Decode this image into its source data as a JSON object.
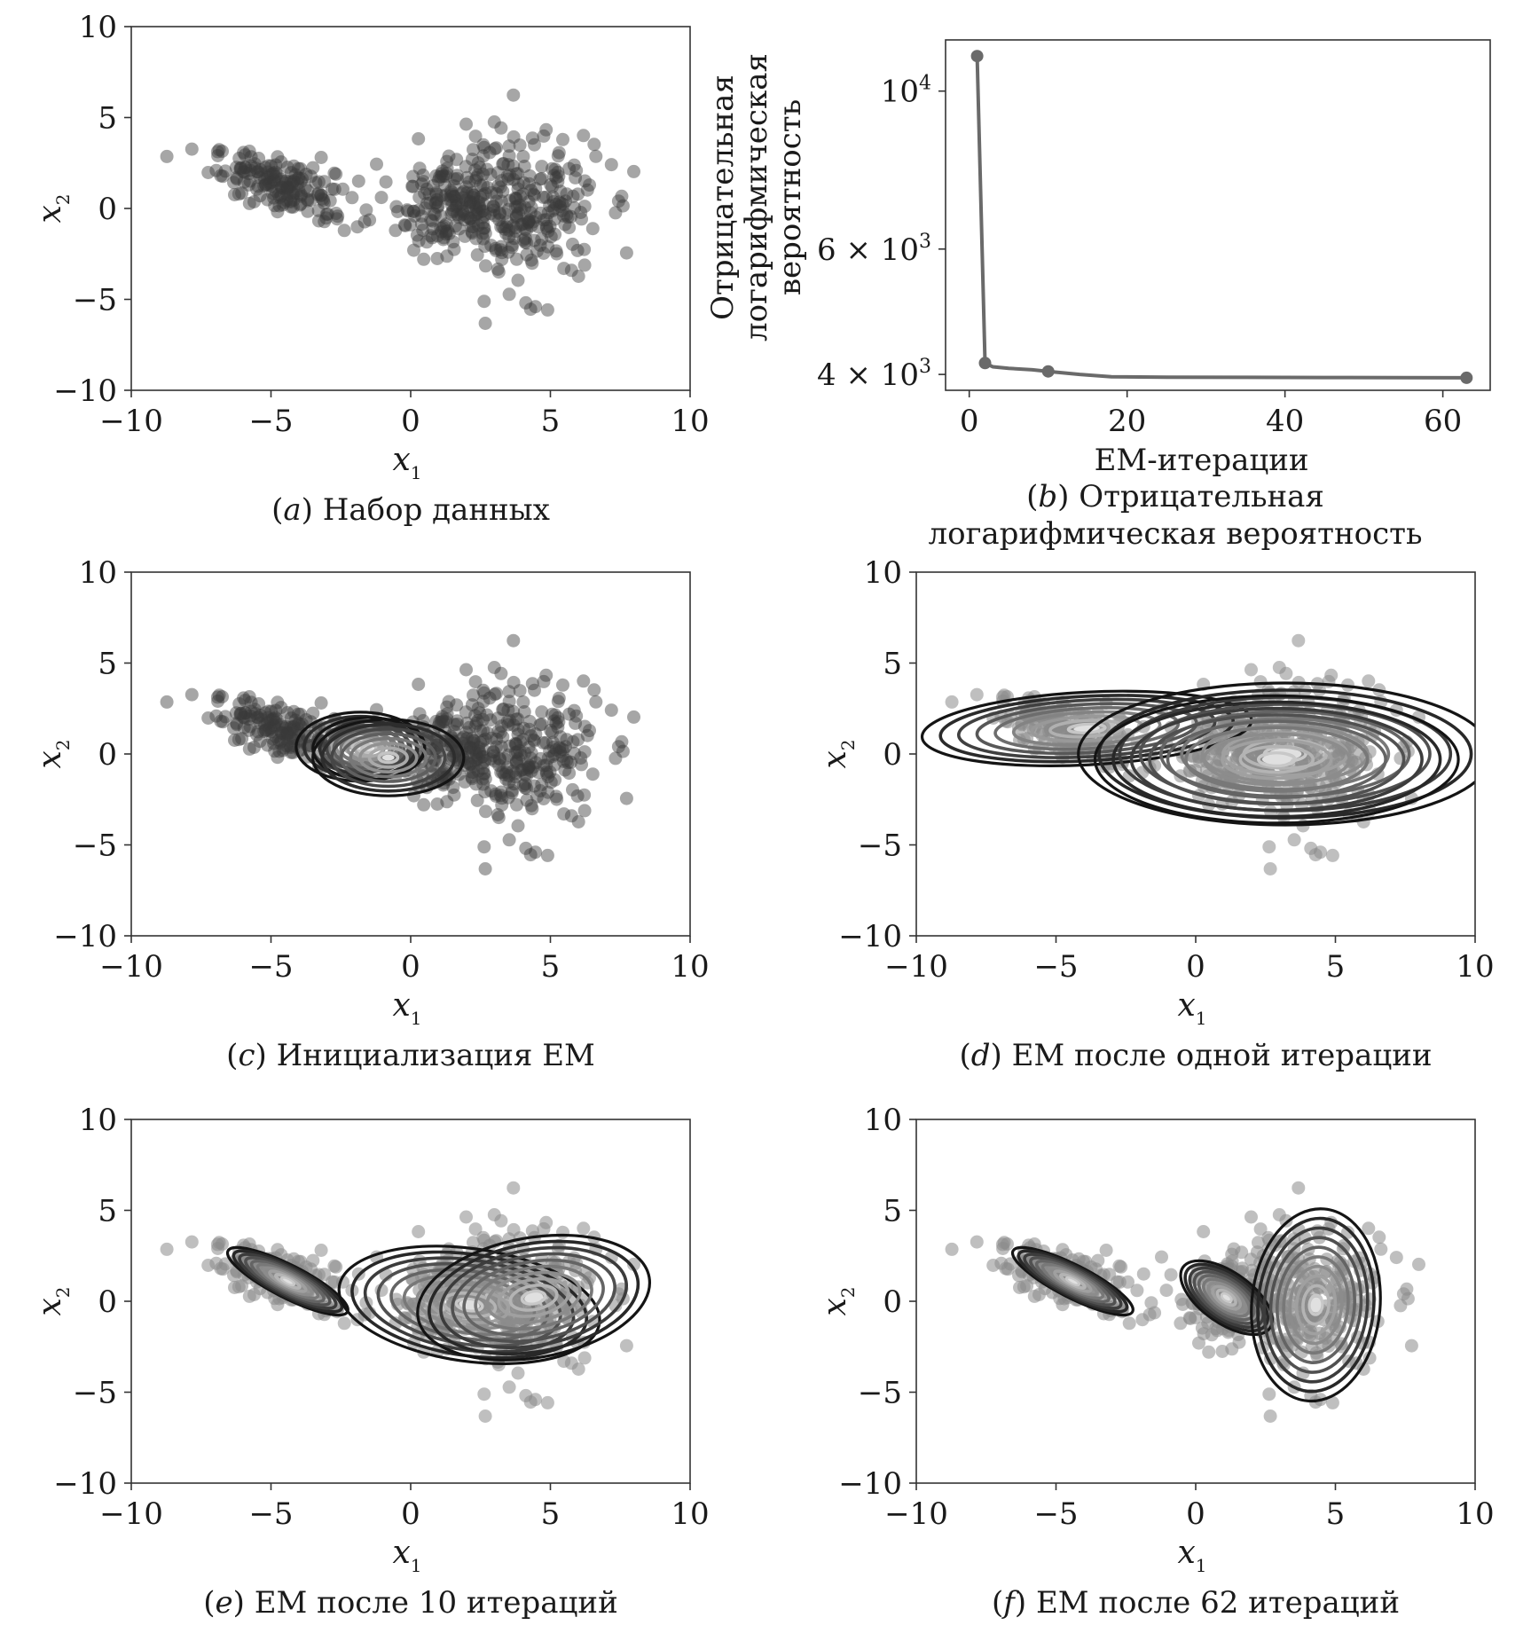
{
  "chart_data": [
    {
      "id": "a",
      "type": "scatter",
      "caption_letter": "a",
      "caption_lines": [
        "Набор  данных"
      ],
      "xlabel": "x",
      "xlabel_sub": "1",
      "ylabel": "x",
      "ylabel_sub": "2",
      "xlim": [
        -10,
        10
      ],
      "ylim": [
        -10,
        10
      ],
      "xticks": [
        -10,
        -5,
        0,
        5,
        10
      ],
      "yticks": [
        -10,
        -5,
        0,
        5,
        10
      ],
      "tick_labels_x": [
        "−10",
        "−5",
        "0",
        "5",
        "10"
      ],
      "tick_labels_y": [
        "−10",
        "−5",
        "0",
        "5",
        "10"
      ],
      "clusters": [
        {
          "center": [
            -4.5,
            1.2
          ],
          "spread": [
            1.3,
            0.9
          ],
          "rho": -0.6,
          "count": 170
        },
        {
          "center": [
            1.5,
            0.3
          ],
          "spread": [
            1.0,
            1.3
          ],
          "rho": 0.0,
          "count": 180
        },
        {
          "center": [
            4.2,
            0.0
          ],
          "spread": [
            1.3,
            2.1
          ],
          "rho": 0.0,
          "count": 220
        }
      ],
      "point_color": "#3a3a3a",
      "contours": []
    },
    {
      "id": "b",
      "type": "line",
      "caption_letter": "b",
      "caption_lines": [
        "Отрицательная",
        "логарифмическая вероятность"
      ],
      "xlabel": "EM-итерации",
      "ylabel_lines": [
        "Отрицательная",
        "логарифмическая",
        "вероятность"
      ],
      "xlim": [
        -3,
        66
      ],
      "ylim": [
        3800,
        11800
      ],
      "yscale": "log",
      "xticks": [
        0,
        20,
        40,
        60
      ],
      "tick_labels_x": [
        "0",
        "20",
        "40",
        "60"
      ],
      "yticks": [
        {
          "value": 10000,
          "base": "10",
          "exp": "4"
        },
        {
          "value": 6000,
          "base": "6 × 10",
          "exp": "3"
        },
        {
          "value": 4000,
          "base": "4 × 10",
          "exp": "3"
        }
      ],
      "series": [
        {
          "x": [
            1,
            2,
            3,
            5,
            8,
            10,
            14,
            18,
            25,
            35,
            45,
            55,
            63
          ],
          "y": [
            11200,
            4150,
            4100,
            4080,
            4060,
            4040,
            4000,
            3970,
            3965,
            3962,
            3960,
            3958,
            3957
          ],
          "markers_at": [
            1,
            2,
            10,
            63
          ],
          "color": "#6a6a6a"
        }
      ]
    },
    {
      "id": "c",
      "type": "scatter",
      "caption_letter": "c",
      "caption_lines": [
        "Инициализация EM"
      ],
      "xlabel": "x",
      "xlabel_sub": "1",
      "ylabel": "x",
      "ylabel_sub": "2",
      "xlim": [
        -10,
        10
      ],
      "ylim": [
        -10,
        10
      ],
      "xticks": [
        -10,
        -5,
        0,
        5,
        10
      ],
      "yticks": [
        -10,
        -5,
        0,
        5,
        10
      ],
      "tick_labels_x": [
        "−10",
        "−5",
        "0",
        "5",
        "10"
      ],
      "tick_labels_y": [
        "−10",
        "−5",
        "0",
        "5",
        "10"
      ],
      "point_color": "#3a3a3a",
      "contours": [
        {
          "center": [
            -1.8,
            0.4
          ],
          "rx": 2.3,
          "ry": 1.9,
          "angle": 0,
          "levels": 8
        },
        {
          "center": [
            -1.5,
            0.3
          ],
          "rx": 2.0,
          "ry": 1.7,
          "angle": 0,
          "levels": 8
        },
        {
          "center": [
            -0.8,
            -0.2
          ],
          "rx": 2.7,
          "ry": 2.1,
          "angle": 0,
          "levels": 8
        }
      ]
    },
    {
      "id": "d",
      "type": "scatter",
      "caption_letter": "d",
      "caption_lines": [
        "EM  после одной итерации"
      ],
      "xlabel": "x",
      "xlabel_sub": "1",
      "ylabel": "x",
      "ylabel_sub": "2",
      "xlim": [
        -10,
        10
      ],
      "ylim": [
        -10,
        10
      ],
      "xticks": [
        -10,
        -5,
        0,
        5,
        10
      ],
      "yticks": [
        -10,
        -5,
        0,
        5,
        10
      ],
      "tick_labels_x": [
        "−10",
        "−5",
        "0",
        "5",
        "10"
      ],
      "tick_labels_y": [
        "−10",
        "−5",
        "0",
        "5",
        "10"
      ],
      "point_color": "#8a8a8a",
      "contours": [
        {
          "center": [
            -3.9,
            1.4
          ],
          "rx": 5.9,
          "ry": 2.0,
          "angle": 3,
          "levels": 9
        },
        {
          "center": [
            3.2,
            0.0
          ],
          "rx": 7.4,
          "ry": 3.9,
          "angle": 0,
          "levels": 10
        },
        {
          "center": [
            2.9,
            -0.3
          ],
          "rx": 6.5,
          "ry": 3.5,
          "angle": 0,
          "levels": 10
        }
      ]
    },
    {
      "id": "e",
      "type": "scatter",
      "caption_letter": "e",
      "caption_lines": [
        "EM  после 10 итераций"
      ],
      "xlabel": "x",
      "xlabel_sub": "1",
      "ylabel": "x",
      "ylabel_sub": "2",
      "xlim": [
        -10,
        10
      ],
      "ylim": [
        -10,
        10
      ],
      "xticks": [
        -10,
        -5,
        0,
        5,
        10
      ],
      "yticks": [
        -10,
        -5,
        0,
        5,
        10
      ],
      "tick_labels_x": [
        "−10",
        "−5",
        "0",
        "5",
        "10"
      ],
      "tick_labels_y": [
        "−10",
        "−5",
        "0",
        "5",
        "10"
      ],
      "point_color": "#8a8a8a",
      "contours": [
        {
          "center": [
            -4.4,
            1.1
          ],
          "rx": 2.4,
          "ry": 0.9,
          "angle": -27,
          "levels": 10
        },
        {
          "center": [
            2.1,
            -0.2
          ],
          "rx": 4.7,
          "ry": 3.1,
          "angle": -8,
          "levels": 10
        },
        {
          "center": [
            4.4,
            0.2
          ],
          "rx": 4.2,
          "ry": 3.3,
          "angle": 10,
          "levels": 10
        }
      ]
    },
    {
      "id": "f",
      "type": "scatter",
      "caption_letter": "f",
      "caption_lines": [
        "EM после 62 итераций"
      ],
      "xlabel": "x",
      "xlabel_sub": "1",
      "ylabel": "x",
      "ylabel_sub": "2",
      "xlim": [
        -10,
        10
      ],
      "ylim": [
        -10,
        10
      ],
      "xticks": [
        -10,
        -5,
        0,
        5,
        10
      ],
      "yticks": [
        -10,
        -5,
        0,
        5,
        10
      ],
      "tick_labels_x": [
        "−10",
        "−5",
        "0",
        "5",
        "10"
      ],
      "tick_labels_y": [
        "−10",
        "−5",
        "0",
        "5",
        "10"
      ],
      "point_color": "#8a8a8a",
      "contours": [
        {
          "center": [
            -4.4,
            1.1
          ],
          "rx": 2.4,
          "ry": 0.9,
          "angle": -27,
          "levels": 10
        },
        {
          "center": [
            1.1,
            0.2
          ],
          "rx": 1.9,
          "ry": 1.4,
          "angle": -35,
          "levels": 10
        },
        {
          "center": [
            4.3,
            -0.2
          ],
          "rx": 2.3,
          "ry": 5.3,
          "angle": -5,
          "levels": 10
        }
      ]
    }
  ]
}
